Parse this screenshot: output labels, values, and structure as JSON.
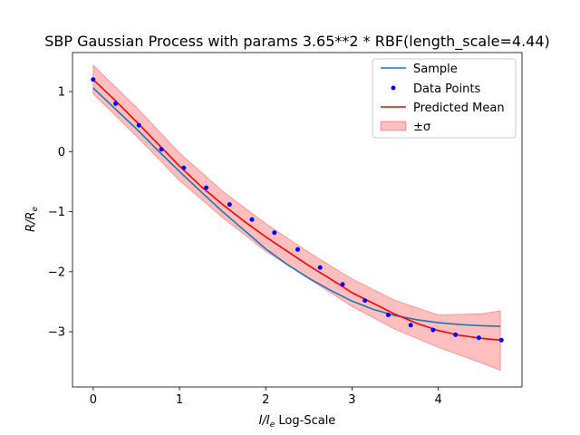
{
  "chart_data": {
    "type": "line",
    "title": "SBP Gaussian Process with params 3.65**2 * RBF(length_scale=4.44)",
    "xlabel_main": "I/I",
    "xlabel_sub": "e",
    "xlabel_suffix": " Log-Scale",
    "ylabel_main": "R/R",
    "ylabel_sub": "e",
    "xlim": [
      -0.24,
      4.97
    ],
    "ylim": [
      -3.92,
      1.65
    ],
    "x_ticks": [
      0,
      1,
      2,
      3,
      4
    ],
    "x_tick_labels": [
      "0",
      "1",
      "2",
      "3",
      "4"
    ],
    "y_ticks": [
      1,
      0,
      -1,
      -2,
      -3
    ],
    "y_tick_labels": [
      "1",
      "0",
      "−1",
      "−2",
      "−3"
    ],
    "grid": false,
    "legend_position": "top-right",
    "legend": [
      {
        "label": "Sample",
        "kind": "line",
        "color": "#1f77b4"
      },
      {
        "label": "Data Points",
        "kind": "marker",
        "color": "#0000ff"
      },
      {
        "label": "Predicted Mean",
        "kind": "line",
        "color": "#ff0000"
      },
      {
        "label": "±σ",
        "kind": "patch",
        "color": "#ff0000"
      }
    ],
    "series": [
      {
        "name": "Sample",
        "color": "#1f77b4",
        "x": [
          0,
          0.25,
          0.5,
          0.75,
          1.0,
          1.25,
          1.5,
          1.75,
          2.0,
          2.25,
          2.5,
          2.75,
          3.0,
          3.25,
          3.5,
          3.75,
          4.0,
          4.25,
          4.5,
          4.72
        ],
        "y": [
          1.06,
          0.72,
          0.38,
          0.02,
          -0.33,
          -0.67,
          -1.0,
          -1.31,
          -1.62,
          -1.88,
          -2.11,
          -2.31,
          -2.49,
          -2.63,
          -2.73,
          -2.8,
          -2.85,
          -2.88,
          -2.9,
          -2.91
        ]
      },
      {
        "name": "Predicted Mean",
        "color": "#ff0000",
        "x": [
          0,
          0.25,
          0.5,
          0.75,
          1.0,
          1.25,
          1.5,
          1.75,
          2.0,
          2.25,
          2.5,
          2.75,
          3.0,
          3.25,
          3.5,
          3.75,
          4.0,
          4.25,
          4.5,
          4.72
        ],
        "y": [
          1.2,
          0.86,
          0.5,
          0.13,
          -0.24,
          -0.58,
          -0.88,
          -1.16,
          -1.42,
          -1.66,
          -1.9,
          -2.12,
          -2.35,
          -2.53,
          -2.71,
          -2.86,
          -2.98,
          -3.06,
          -3.11,
          -3.14
        ]
      },
      {
        "name": "Data Points",
        "color": "#0000ff",
        "x": [
          0,
          0.26,
          0.53,
          0.79,
          1.05,
          1.31,
          1.58,
          1.84,
          2.1,
          2.37,
          2.63,
          2.89,
          3.15,
          3.42,
          3.68,
          3.94,
          4.2,
          4.47,
          4.73
        ],
        "y": [
          1.2,
          0.8,
          0.44,
          0.04,
          -0.27,
          -0.6,
          -0.88,
          -1.13,
          -1.35,
          -1.63,
          -1.93,
          -2.21,
          -2.48,
          -2.72,
          -2.89,
          -2.97,
          -3.05,
          -3.1,
          -3.14
        ]
      }
    ],
    "band": {
      "name": "±σ",
      "color": "#ff0000",
      "opacity": 0.25,
      "x": [
        0,
        0.5,
        1.0,
        1.5,
        2.0,
        2.5,
        3.0,
        3.5,
        4.0,
        4.5,
        4.72
      ],
      "upper": [
        1.44,
        0.74,
        -0.02,
        -0.66,
        -1.2,
        -1.68,
        -2.12,
        -2.48,
        -2.72,
        -2.7,
        -2.65
      ],
      "lower": [
        0.96,
        0.26,
        -0.48,
        -1.1,
        -1.66,
        -2.12,
        -2.58,
        -2.96,
        -3.26,
        -3.52,
        -3.64
      ]
    }
  }
}
